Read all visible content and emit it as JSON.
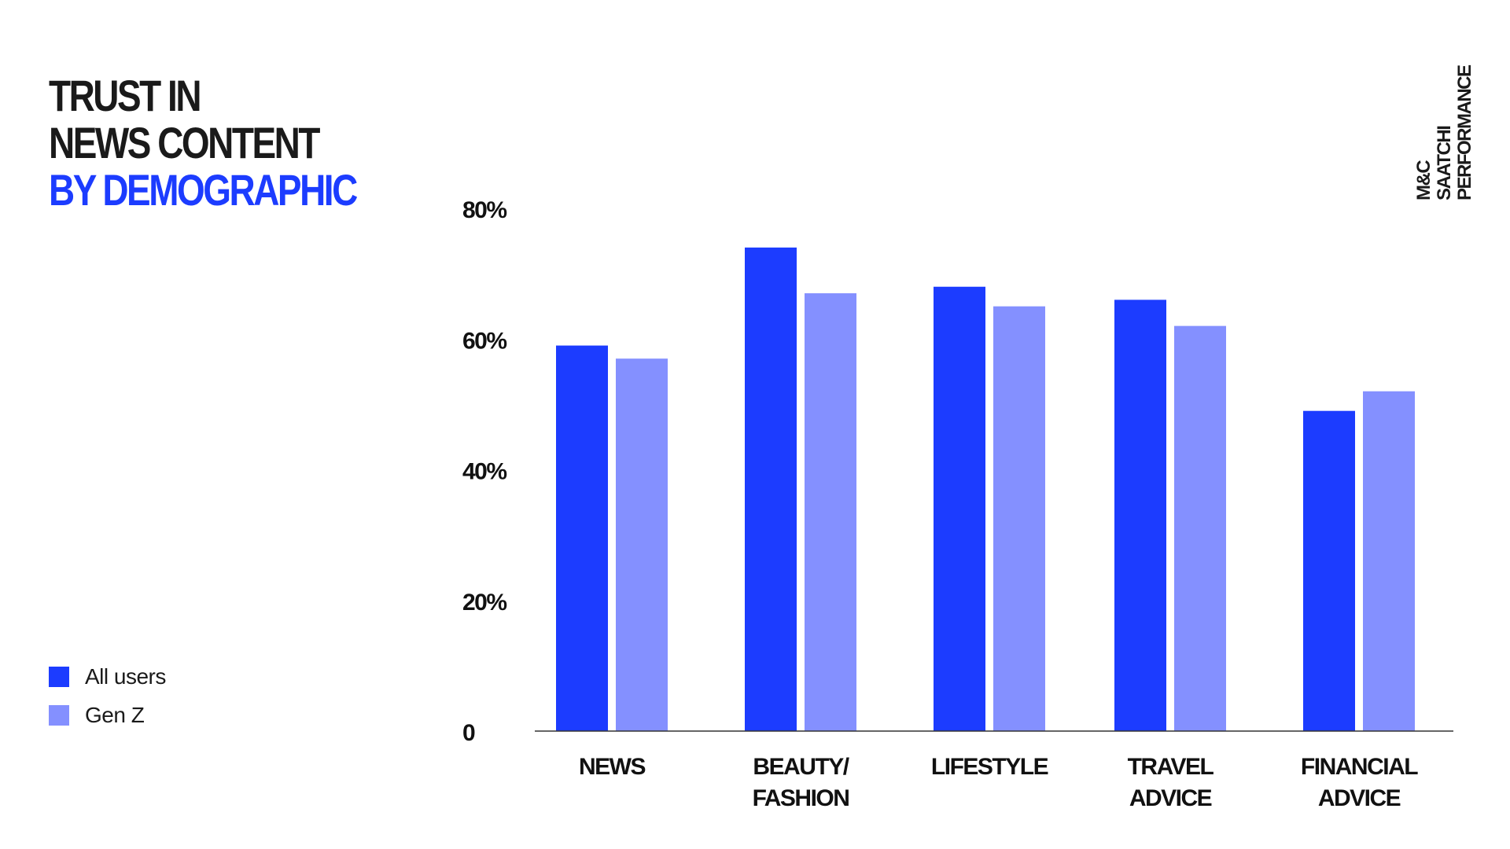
{
  "title": {
    "line1": "TRUST IN",
    "line2": "NEWS CONTENT",
    "line3": "BY DEMOGRAPHIC"
  },
  "brand": {
    "line1": "M&C",
    "line2": "SAATCHI",
    "line3": "PERFORMANCE"
  },
  "colors": {
    "accent": "#1c3cff",
    "all_users": "#1c3cff",
    "gen_z": "#8490ff",
    "text": "#1a1a1a"
  },
  "chart_data": {
    "type": "bar",
    "title": "TRUST IN NEWS CONTENT BY DEMOGRAPHIC",
    "xlabel": "",
    "ylabel": "",
    "categories": [
      [
        "NEWS"
      ],
      [
        "BEAUTY/",
        "FASHION"
      ],
      [
        "LIFESTYLE"
      ],
      [
        "TRAVEL",
        "ADVICE"
      ],
      [
        "FINANCIAL",
        "ADVICE"
      ]
    ],
    "series": [
      {
        "name": "All users",
        "values": [
          59,
          74,
          68,
          66,
          49
        ]
      },
      {
        "name": "Gen Z",
        "values": [
          57,
          67,
          65,
          62,
          52
        ]
      }
    ],
    "yticks": [
      {
        "value": 0,
        "label": "0"
      },
      {
        "value": 20,
        "label": "20%"
      },
      {
        "value": 40,
        "label": "40%"
      },
      {
        "value": 60,
        "label": "60%"
      },
      {
        "value": 80,
        "label": "80%"
      }
    ],
    "ylim": [
      0,
      80
    ],
    "grid": false,
    "legend_position": "bottom-left"
  }
}
